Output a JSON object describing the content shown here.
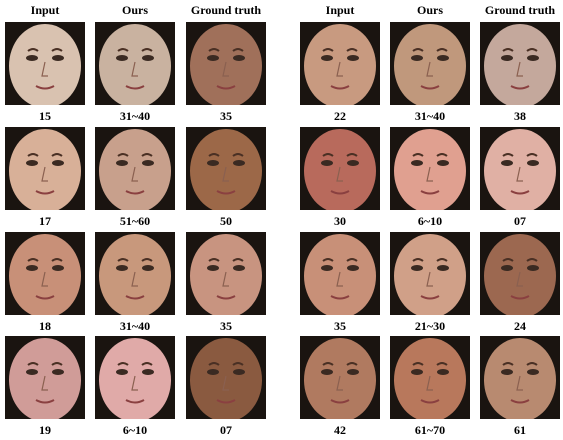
{
  "headers": [
    "Input",
    "Ours",
    "Ground truth",
    "Input",
    "Ours",
    "Ground truth"
  ],
  "rows": [
    [
      "15",
      "31~40",
      "35",
      "22",
      "31~40",
      "38"
    ],
    [
      "17",
      "51~60",
      "50",
      "30",
      "6~10",
      "07"
    ],
    [
      "18",
      "31~40",
      "35",
      "35",
      "21~30",
      "24"
    ],
    [
      "19",
      "6~10",
      "07",
      "42",
      "61~70",
      "61"
    ]
  ]
}
